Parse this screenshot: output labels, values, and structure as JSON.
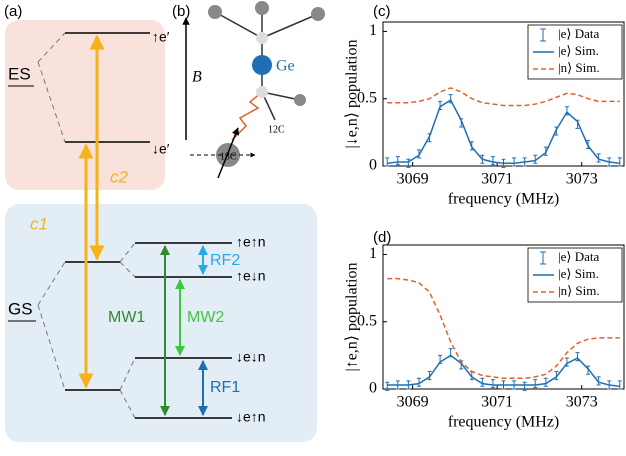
{
  "panel_a": {
    "label": "(a)",
    "es": "ES",
    "gs": "GS",
    "levels": [
      "↑e′",
      "↓e′",
      "↑e↑n",
      "↑e↓n",
      "↓e↓n",
      "↓e↑n"
    ],
    "transitions": [
      "c2",
      "c1",
      "MW1",
      "MW2",
      "RF2",
      "RF1"
    ]
  },
  "panel_b": {
    "label": "(b)",
    "field": "B⃗",
    "atom": "Ge",
    "c13": "13C",
    "c12": "12C"
  },
  "chart_data": [
    {
      "type": "line",
      "panel_label": "(c)",
      "xlabel": "frequency (MHz)",
      "ylabel": "|↓e,n⟩ population",
      "x": [
        3068.4,
        3068.65,
        3068.9,
        3069.15,
        3069.4,
        3069.65,
        3069.9,
        3070.15,
        3070.4,
        3070.65,
        3070.9,
        3071.15,
        3071.4,
        3071.65,
        3071.9,
        3072.15,
        3072.4,
        3072.65,
        3072.9,
        3073.15,
        3073.4,
        3073.65,
        3073.9
      ],
      "xlim": [
        3068.3,
        3074
      ],
      "xticks": [
        3069,
        3071,
        3073
      ],
      "ylim": [
        0,
        1.07
      ],
      "yticks": [
        0,
        0.5,
        1
      ],
      "legend": "upper right",
      "series": [
        {
          "name": "|e⟩ Data",
          "color": "#1f6fb4",
          "style": "errorbar",
          "values": [
            0.03,
            0.04,
            0.02,
            0.09,
            0.21,
            0.45,
            0.5,
            0.32,
            0.15,
            0.05,
            0.04,
            0.02,
            0.03,
            0.03,
            0.05,
            0.11,
            0.26,
            0.41,
            0.31,
            0.16,
            0.06,
            0.03,
            0.03
          ],
          "errors": [
            0.03,
            0.03,
            0.03,
            0.03,
            0.03,
            0.03,
            0.03,
            0.03,
            0.03,
            0.03,
            0.03,
            0.03,
            0.03,
            0.03,
            0.03,
            0.03,
            0.03,
            0.03,
            0.03,
            0.03,
            0.03,
            0.03,
            0.03
          ]
        },
        {
          "name": "|e⟩ Sim.",
          "color": "#1f6fb4",
          "style": "solid",
          "values": [
            0.02,
            0.03,
            0.03,
            0.08,
            0.22,
            0.44,
            0.49,
            0.34,
            0.14,
            0.05,
            0.03,
            0.02,
            0.02,
            0.03,
            0.04,
            0.1,
            0.27,
            0.4,
            0.33,
            0.15,
            0.05,
            0.03,
            0.02
          ]
        },
        {
          "name": "|n⟩ Sim.",
          "color": "#e0622a",
          "style": "dashed",
          "values": [
            0.47,
            0.47,
            0.47,
            0.48,
            0.5,
            0.55,
            0.58,
            0.55,
            0.5,
            0.47,
            0.46,
            0.45,
            0.45,
            0.45,
            0.46,
            0.48,
            0.51,
            0.54,
            0.53,
            0.5,
            0.48,
            0.48,
            0.48
          ]
        }
      ]
    },
    {
      "type": "line",
      "panel_label": "(d)",
      "xlabel": "frequency (MHz)",
      "ylabel": "|↑e,n⟩ population",
      "x": [
        3068.4,
        3068.65,
        3068.9,
        3069.15,
        3069.4,
        3069.65,
        3069.9,
        3070.15,
        3070.4,
        3070.65,
        3070.9,
        3071.15,
        3071.4,
        3071.65,
        3071.9,
        3072.15,
        3072.4,
        3072.65,
        3072.9,
        3073.15,
        3073.4,
        3073.65,
        3073.9
      ],
      "xlim": [
        3068.3,
        3074
      ],
      "xticks": [
        3069,
        3071,
        3073
      ],
      "ylim": [
        0,
        1.07
      ],
      "yticks": [
        0,
        0.5,
        1
      ],
      "legend": "upper right",
      "series": [
        {
          "name": "|e⟩ Data",
          "color": "#1f6fb4",
          "style": "errorbar",
          "values": [
            0.02,
            0.03,
            0.03,
            0.05,
            0.1,
            0.22,
            0.27,
            0.18,
            0.1,
            0.05,
            0.04,
            0.03,
            0.03,
            0.02,
            0.04,
            0.05,
            0.1,
            0.2,
            0.24,
            0.14,
            0.06,
            0.03,
            0.03
          ],
          "errors": [
            0.03,
            0.03,
            0.03,
            0.03,
            0.03,
            0.03,
            0.03,
            0.03,
            0.03,
            0.03,
            0.03,
            0.03,
            0.03,
            0.03,
            0.03,
            0.03,
            0.03,
            0.03,
            0.03,
            0.03,
            0.03,
            0.03,
            0.03
          ]
        },
        {
          "name": "|e⟩ Sim.",
          "color": "#1f6fb4",
          "style": "solid",
          "values": [
            0.03,
            0.03,
            0.03,
            0.04,
            0.09,
            0.2,
            0.25,
            0.19,
            0.09,
            0.04,
            0.03,
            0.03,
            0.03,
            0.03,
            0.03,
            0.04,
            0.09,
            0.19,
            0.23,
            0.15,
            0.05,
            0.03,
            0.02
          ]
        },
        {
          "name": "|n⟩ Sim.",
          "color": "#e0622a",
          "style": "dashed",
          "values": [
            0.82,
            0.82,
            0.81,
            0.79,
            0.72,
            0.55,
            0.35,
            0.2,
            0.13,
            0.1,
            0.09,
            0.08,
            0.08,
            0.08,
            0.09,
            0.11,
            0.17,
            0.27,
            0.34,
            0.37,
            0.38,
            0.38,
            0.38
          ]
        }
      ]
    }
  ]
}
